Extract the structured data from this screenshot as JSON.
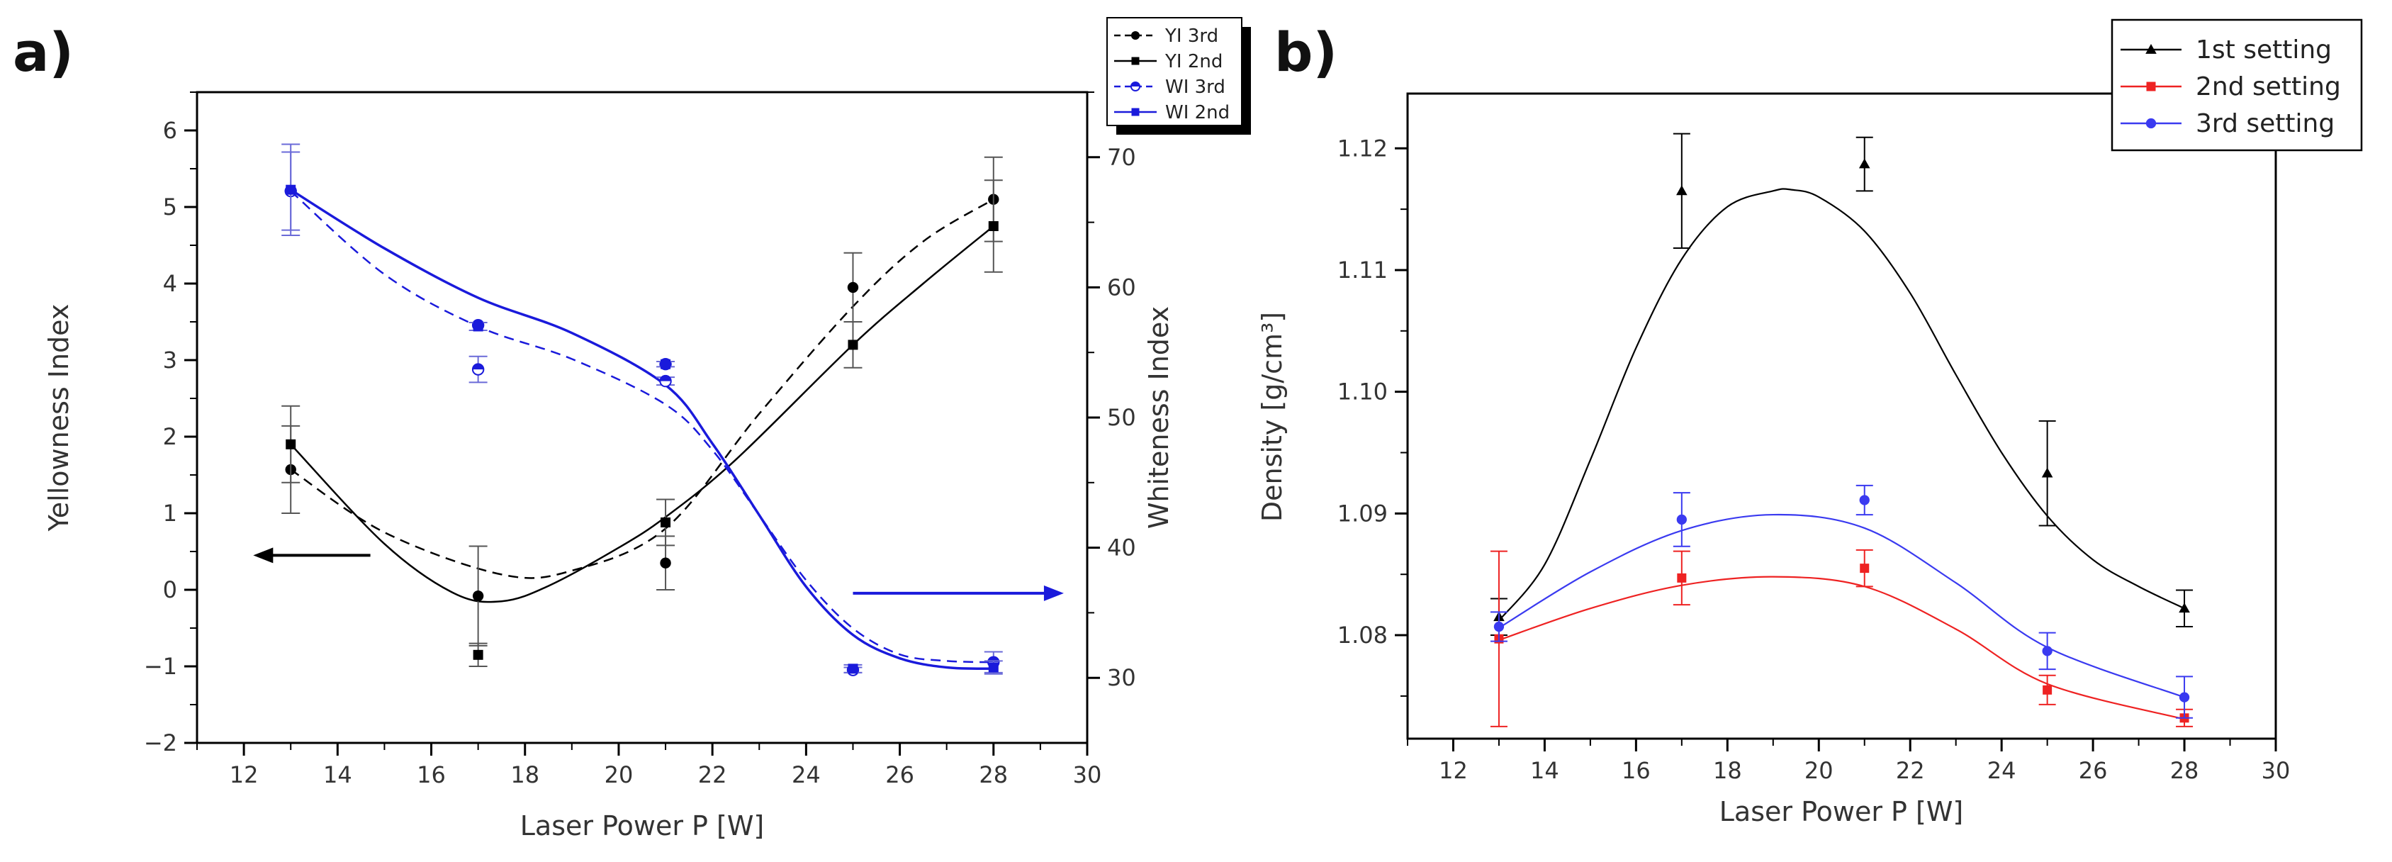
{
  "panels": {
    "a": "a)",
    "b": "b)"
  },
  "chart_data": [
    {
      "type": "scatter",
      "xlabel": "Laser Power P [W]",
      "ylabel": "Yellowness Index",
      "y2label": "Whiteness Index",
      "xlim": [
        11,
        30
      ],
      "ylim": [
        -2,
        6.5
      ],
      "y2lim": [
        25,
        75
      ],
      "xticks": [
        12,
        14,
        16,
        18,
        20,
        22,
        24,
        26,
        28,
        30
      ],
      "yticks": [
        -2,
        -1,
        0,
        1,
        2,
        3,
        4,
        5,
        6
      ],
      "y2ticks": [
        30,
        40,
        50,
        60,
        70
      ],
      "ytick_labels": [
        "−2",
        "−1",
        "0",
        "1",
        "2",
        "3",
        "4",
        "5",
        "6"
      ],
      "legend_position": "top-right",
      "series": [
        {
          "name": "YI 3rd",
          "axis": "left",
          "color": "#000000",
          "marker": "circle",
          "dash": true,
          "x": [
            13,
            17,
            21,
            25,
            28
          ],
          "y": [
            1.57,
            -0.08,
            0.35,
            3.95,
            5.1
          ],
          "err": [
            0.57,
            0.65,
            0.35,
            0.45,
            0.55
          ],
          "fit_x": [
            13,
            15,
            17.5,
            19,
            21,
            23,
            25,
            26.5,
            28
          ],
          "fit_y": [
            1.57,
            0.75,
            0.2,
            0.25,
            0.8,
            2.3,
            3.7,
            4.55,
            5.1
          ]
        },
        {
          "name": "YI 2nd",
          "axis": "left",
          "color": "#000000",
          "marker": "square",
          "dash": false,
          "x": [
            13,
            17,
            21,
            25,
            28
          ],
          "y": [
            1.9,
            -0.85,
            0.88,
            3.2,
            4.75
          ],
          "err": [
            0.5,
            0.15,
            0.3,
            0.3,
            0.6
          ],
          "fit_x": [
            13,
            15,
            16.5,
            17.5,
            18.5,
            20,
            21,
            22.5,
            25,
            26.5,
            28
          ],
          "fit_y": [
            1.9,
            0.6,
            -0.05,
            -0.15,
            0.05,
            0.55,
            0.95,
            1.7,
            3.2,
            4.0,
            4.75
          ]
        },
        {
          "name": "WI 3rd",
          "axis": "right",
          "color": "#1a1adb",
          "marker": "half-circle",
          "dash": true,
          "x": [
            13,
            17,
            21,
            25,
            28
          ],
          "y": [
            67.4,
            53.7,
            52.8,
            30.6,
            31.2
          ],
          "err": [
            3.0,
            1.0,
            0.3,
            0.2,
            0.8
          ],
          "fit_x": [
            13,
            15,
            17,
            19,
            21,
            22,
            23,
            24,
            25,
            26,
            27,
            28
          ],
          "fit_y": [
            67.4,
            61,
            57,
            54.5,
            51,
            47.5,
            42.5,
            37.5,
            33.8,
            31.8,
            31.3,
            31.2
          ],
          "extra_markers": [
            {
              "x": 17,
              "y": 57.1
            },
            {
              "x": 21,
              "y": 54.1
            }
          ]
        },
        {
          "name": "WI 2nd",
          "axis": "right",
          "color": "#1a1adb",
          "marker": "square",
          "dash": false,
          "x": [
            13,
            17,
            21,
            25,
            28
          ],
          "y": [
            67.5,
            57.0,
            54.1,
            30.7,
            30.8
          ],
          "err": [
            3.5,
            0.3,
            0.2,
            0.3,
            0.5
          ],
          "fit_x": [
            13,
            15,
            17,
            19,
            21,
            22,
            23,
            24,
            25,
            26,
            27,
            28
          ],
          "fit_y": [
            67.5,
            63,
            59.2,
            56.5,
            52.5,
            48,
            42.5,
            37,
            33.3,
            31.5,
            30.8,
            30.7
          ]
        }
      ],
      "arrows": [
        {
          "axis": "left",
          "x_from": 14.7,
          "x_to": 12.2,
          "y": 0.45,
          "color": "#000000"
        },
        {
          "axis": "right",
          "x_from": 25,
          "x_to": 29.5,
          "y": 36.5,
          "color": "#1a1adb"
        }
      ]
    },
    {
      "type": "scatter",
      "xlabel": "Laser Power P [W]",
      "ylabel": "Density [g/cm³]",
      "xlim": [
        11,
        30
      ],
      "ylim": [
        1.0715,
        1.1245
      ],
      "xticks": [
        12,
        14,
        16,
        18,
        20,
        22,
        24,
        26,
        28,
        30
      ],
      "yticks": [
        1.08,
        1.09,
        1.1,
        1.11,
        1.12
      ],
      "ytick_labels": [
        "1.08",
        "1.09",
        "1.10",
        "1.11",
        "1.12"
      ],
      "legend_position": "top-right",
      "series": [
        {
          "name": "1st setting",
          "color": "#000000",
          "marker": "triangle",
          "x": [
            13,
            17,
            21,
            25,
            28
          ],
          "y": [
            1.0815,
            1.1165,
            1.1187,
            1.0933,
            1.0822
          ],
          "err": [
            0.0015,
            0.0047,
            0.0022,
            0.0043,
            0.0015
          ],
          "fit_x": [
            13,
            14,
            15,
            16,
            17,
            18,
            19,
            19.4,
            20,
            21,
            22,
            23,
            24,
            25,
            26,
            27,
            28
          ],
          "fit_y": [
            1.0812,
            1.0858,
            1.0944,
            1.1036,
            1.1109,
            1.1152,
            1.1165,
            1.1166,
            1.116,
            1.1132,
            1.1081,
            1.1014,
            1.095,
            1.0898,
            1.0862,
            1.084,
            1.0822
          ]
        },
        {
          "name": "2nd setting",
          "color": "#ee2222",
          "marker": "square",
          "x": [
            13,
            17,
            21,
            25,
            28
          ],
          "y": [
            1.0797,
            1.0847,
            1.0855,
            1.0755,
            1.0732
          ],
          "err": [
            0.0072,
            0.0022,
            0.0015,
            0.0012,
            0.0007
          ],
          "fit_x": [
            13,
            15,
            17,
            19,
            21,
            23,
            25,
            28
          ],
          "fit_y": [
            1.0796,
            1.0822,
            1.0841,
            1.0848,
            1.084,
            1.0805,
            1.076,
            1.0731
          ]
        },
        {
          "name": "3rd setting",
          "color": "#3a3af0",
          "marker": "circle",
          "x": [
            13,
            17,
            21,
            25,
            28
          ],
          "y": [
            1.0807,
            1.0895,
            1.0911,
            1.0787,
            1.0749
          ],
          "err": [
            0.0012,
            0.0022,
            0.0012,
            0.0015,
            0.0017
          ],
          "fit_x": [
            13,
            15,
            17,
            19,
            21,
            23,
            25,
            28
          ],
          "fit_y": [
            1.0806,
            1.0852,
            1.0886,
            1.0899,
            1.0888,
            1.0843,
            1.079,
            1.0749
          ]
        }
      ]
    }
  ]
}
